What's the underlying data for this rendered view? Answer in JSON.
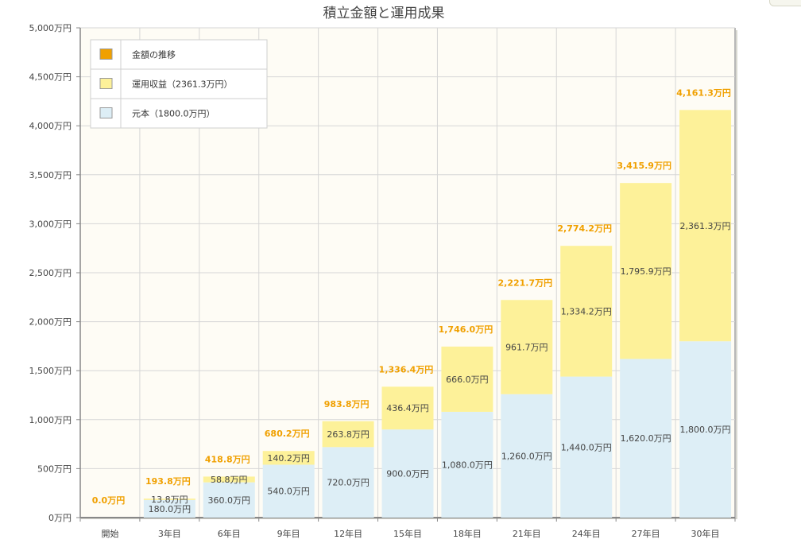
{
  "chart_data": {
    "type": "bar",
    "stacked": true,
    "title": "積立金額と運用成果",
    "categories": [
      "開始",
      "3年目",
      "6年目",
      "9年目",
      "12年目",
      "15年目",
      "18年目",
      "21年目",
      "24年目",
      "27年目",
      "30年目"
    ],
    "series": [
      {
        "name": "元本（1800.0万円）",
        "color": "#ddeef6",
        "values": [
          0,
          180.0,
          360.0,
          540.0,
          720.0,
          900.0,
          1080.0,
          1260.0,
          1440.0,
          1620.0,
          1800.0
        ],
        "labels": [
          "",
          "180.0万円",
          "360.0万円",
          "540.0万円",
          "720.0万円",
          "900.0万円",
          "1,080.0万円",
          "1,260.0万円",
          "1,440.0万円",
          "1,620.0万円",
          "1,800.0万円"
        ]
      },
      {
        "name": "運用収益（2361.3万円）",
        "color": "#fdf199",
        "values": [
          0,
          13.8,
          58.8,
          140.2,
          263.8,
          436.4,
          666.0,
          961.7,
          1334.2,
          1795.9,
          2361.3
        ],
        "labels": [
          "",
          "13.8万円",
          "58.8万円",
          "140.2万円",
          "263.8万円",
          "436.4万円",
          "666.0万円",
          "961.7万円",
          "1,334.2万円",
          "1,795.9万円",
          "2,361.3万円"
        ]
      }
    ],
    "totals": {
      "name": "金額の推移",
      "color": "#f0a000",
      "values": [
        0.0,
        193.8,
        418.8,
        680.2,
        983.8,
        1336.4,
        1746.0,
        2221.7,
        2774.2,
        3415.9,
        4161.3
      ],
      "labels": [
        "0.0万円",
        "193.8万円",
        "418.8万円",
        "680.2万円",
        "983.8万円",
        "1,336.4万円",
        "1,746.0万円",
        "2,221.7万円",
        "2,774.2万円",
        "3,415.9万円",
        "4,161.3万円"
      ]
    },
    "y_ticks": [
      0,
      500,
      1000,
      1500,
      2000,
      2500,
      3000,
      3500,
      4000,
      4500,
      5000
    ],
    "y_tick_labels": [
      "0万円",
      "500万円",
      "1,000万円",
      "1,500万円",
      "2,000万円",
      "2,500万円",
      "3,000万円",
      "3,500万円",
      "4,000万円",
      "4,500万円",
      "5,000万円"
    ],
    "ylim": [
      0,
      5000
    ],
    "grid": true,
    "legend_position": "top-left",
    "legend_order": [
      "金額の推移",
      "運用収益（2361.3万円）",
      "元本（1800.0万円）"
    ]
  }
}
